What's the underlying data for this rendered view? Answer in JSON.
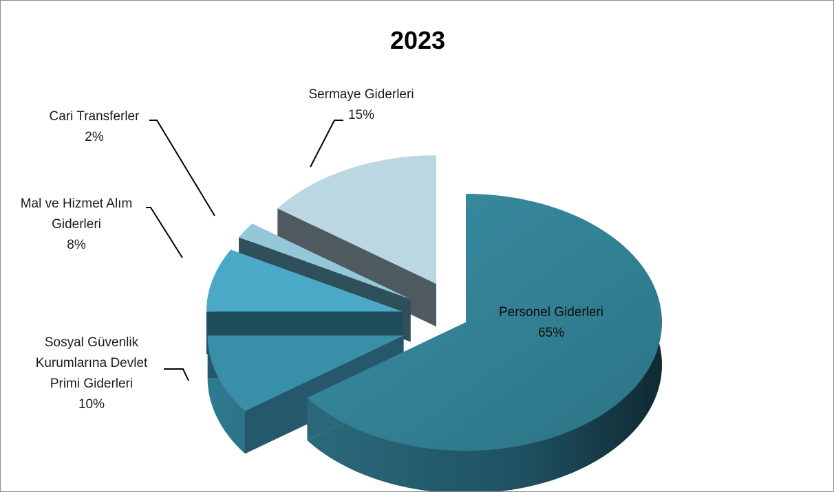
{
  "chart_data": {
    "type": "pie",
    "title": "2023",
    "categories": [
      "Personel Giderleri",
      "Sosyal Güvenlik Kurumlarına Devlet Primi Giderleri",
      "Mal ve Hizmet Alım Giderleri",
      "Cari Transferler",
      "Sermaye Giderleri"
    ],
    "values": [
      65,
      10,
      8,
      2,
      15
    ],
    "percent_labels": [
      "65%",
      "10%",
      "8%",
      "2%",
      "15%"
    ],
    "label_lines": [
      [
        "Personel Giderleri"
      ],
      [
        "Sosyal Güvenlik",
        "Kurumlarına Devlet",
        "Primi Giderleri"
      ],
      [
        "Mal ve Hizmet Alım",
        "Giderleri"
      ],
      [
        "Cari Transferler"
      ],
      [
        "Sermaye Giderleri"
      ]
    ],
    "colors": [
      "#327f93",
      "#3a8fa8",
      "#4aa9c6",
      "#94c8d8",
      "#bad7e2"
    ],
    "style": "3d-exploded"
  }
}
